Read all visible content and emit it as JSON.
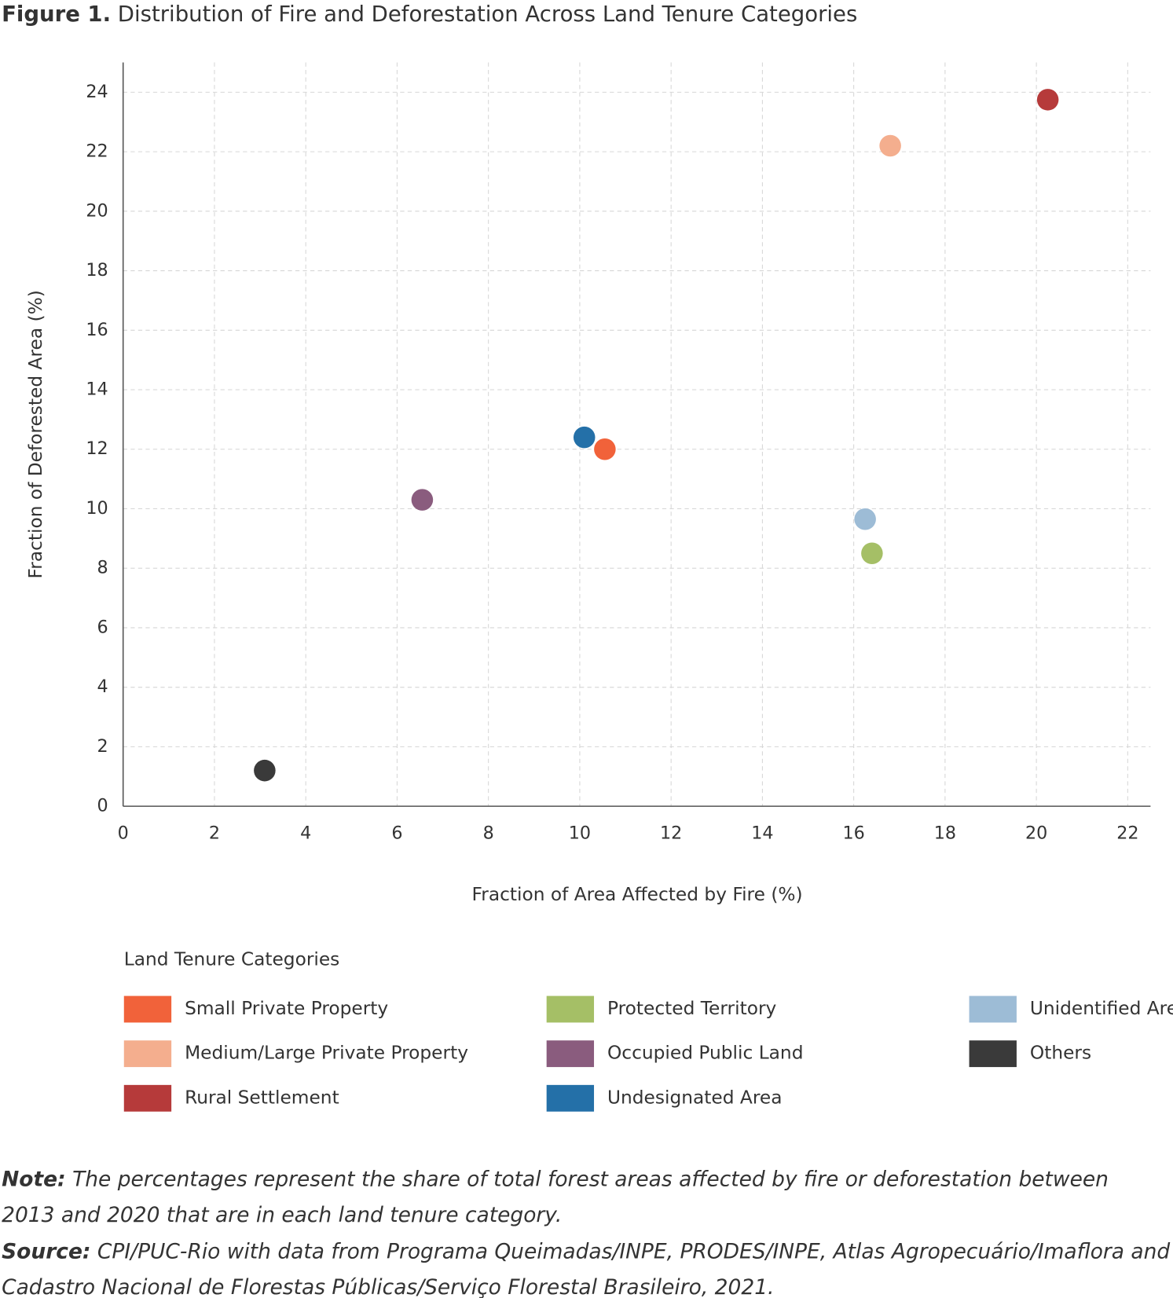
{
  "chart_data": {
    "type": "scatter",
    "figure_label": "Figure 1.",
    "title": "Distribution of Fire and Deforestation Across Land Tenure Categories",
    "x_label": "Fraction of Area Affected by Fire (%)",
    "y_label": "Fraction of Deforested Area (%)",
    "xlim": [
      0,
      22.5
    ],
    "ylim": [
      0,
      25
    ],
    "xticks": [
      0,
      2,
      4,
      6,
      8,
      10,
      12,
      14,
      16,
      18,
      20,
      22
    ],
    "yticks": [
      0,
      2,
      4,
      6,
      8,
      10,
      12,
      14,
      16,
      18,
      20,
      22,
      24
    ],
    "grid": true,
    "legend_title": "Land Tenure Categories",
    "series": [
      {
        "name": "Small Private Property",
        "color": "#f1623a",
        "x": [
          10.55
        ],
        "values": [
          12.0
        ]
      },
      {
        "name": "Medium/Large Private Property",
        "color": "#f4ae8e",
        "x": [
          16.8
        ],
        "values": [
          22.2
        ]
      },
      {
        "name": "Rural Settlement",
        "color": "#b63a3a",
        "x": [
          20.25
        ],
        "values": [
          23.75
        ]
      },
      {
        "name": "Protected Territory",
        "color": "#a5bf66",
        "x": [
          16.4
        ],
        "values": [
          8.5
        ]
      },
      {
        "name": "Occupied Public Land",
        "color": "#8a5c7e",
        "x": [
          6.55
        ],
        "values": [
          10.3
        ]
      },
      {
        "name": "Undesignated Area",
        "color": "#2470a8",
        "x": [
          10.1
        ],
        "values": [
          12.4
        ]
      },
      {
        "name": "Unidentified Area",
        "color": "#9dbcd6",
        "x": [
          16.25
        ],
        "values": [
          9.65
        ]
      },
      {
        "name": "Others",
        "color": "#3a3a3a",
        "x": [
          3.1
        ],
        "values": [
          1.2
        ]
      }
    ]
  },
  "note": {
    "label": "Note:",
    "lines": [
      "The percentages represent the share of total forest areas affected by fire or deforestation between",
      "2013 and 2020 that are in each land tenure category."
    ]
  },
  "source": {
    "label": "Source:",
    "lines": [
      "CPI/PUC-Rio with data from Programa Queimadas/INPE, PRODES/INPE, Atlas Agropecuário/Imaflora and",
      "Cadastro Nacional de Florestas Públicas/Serviço Florestal Brasileiro, 2021."
    ]
  }
}
